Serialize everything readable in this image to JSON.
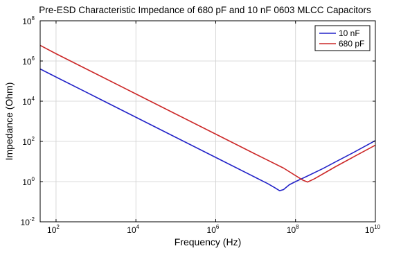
{
  "chart_data": {
    "type": "line",
    "title": "Pre-ESD Characteristic Impedance of 680 pF and 10 nF 0603 MLCC Capacitors",
    "xlabel": "Frequency (Hz)",
    "ylabel": "Impedance (Ohm)",
    "x_scale": "log",
    "y_scale": "log",
    "xlim": [
      40,
      10000000000
    ],
    "ylim": [
      0.01,
      100000000
    ],
    "x_ticks": [
      100,
      10000,
      1000000,
      100000000,
      10000000000
    ],
    "x_tick_labels": [
      {
        "base": "10",
        "exp": "2"
      },
      {
        "base": "10",
        "exp": "4"
      },
      {
        "base": "10",
        "exp": "6"
      },
      {
        "base": "10",
        "exp": "8"
      },
      {
        "base": "10",
        "exp": "10"
      }
    ],
    "y_ticks": [
      0.01,
      1,
      100,
      10000,
      1000000,
      100000000
    ],
    "y_tick_labels": [
      {
        "base": "10",
        "exp": "-2"
      },
      {
        "base": "10",
        "exp": "0"
      },
      {
        "base": "10",
        "exp": "2"
      },
      {
        "base": "10",
        "exp": "4"
      },
      {
        "base": "10",
        "exp": "6"
      },
      {
        "base": "10",
        "exp": "8"
      }
    ],
    "grid": true,
    "legend_position": "top-right",
    "series": [
      {
        "name": "10 nF",
        "color": "#2323c8",
        "x": [
          40,
          100,
          1000,
          10000,
          100000,
          1000000,
          10000000,
          20000000,
          30000000,
          40000000,
          50000000,
          70000000,
          100000000,
          200000000,
          500000000,
          1000000000,
          3000000000,
          10000000000
        ],
        "y": [
          400000,
          160000,
          16000,
          1600,
          160,
          16,
          1.6,
          0.8,
          0.5,
          0.35,
          0.4,
          0.7,
          1.0,
          1.9,
          4.6,
          9.5,
          30,
          110
        ]
      },
      {
        "name": "680 pF",
        "color": "#cc2828",
        "x": [
          40,
          100,
          1000,
          10000,
          100000,
          1000000,
          10000000,
          50000000,
          100000000,
          150000000,
          200000000,
          300000000,
          500000000,
          1000000000,
          3000000000,
          10000000000
        ],
        "y": [
          6000000,
          2300000,
          230000,
          23000,
          2300,
          230,
          23,
          4.7,
          2.0,
          1.2,
          0.95,
          1.4,
          2.5,
          5.5,
          18,
          65
        ]
      }
    ]
  }
}
